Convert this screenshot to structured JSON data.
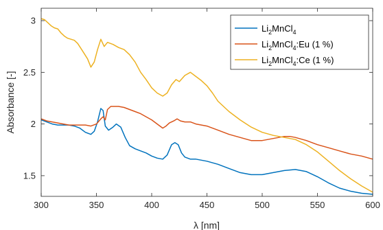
{
  "chart_data": {
    "type": "line",
    "xlabel": "λ [nm]",
    "ylabel": "Absorbance [-]",
    "xlim": [
      300,
      600
    ],
    "ylim": [
      1.3,
      3.12
    ],
    "xticks": [
      300,
      350,
      400,
      450,
      500,
      550,
      600
    ],
    "yticks": [
      1.5,
      2,
      2.5,
      3
    ],
    "grid": false,
    "legend_position": "top-right",
    "series": [
      {
        "name": "Li2MnCl4",
        "legend_parts": [
          "Li",
          "2",
          "MnCl",
          "4",
          ""
        ],
        "color": "#0072BD",
        "x": [
          300,
          305,
          310,
          315,
          320,
          325,
          330,
          335,
          340,
          345,
          348,
          351,
          354,
          356,
          358,
          361,
          365,
          368,
          372,
          376,
          380,
          385,
          390,
          395,
          400,
          405,
          410,
          414,
          418,
          421,
          424,
          427,
          430,
          435,
          440,
          450,
          460,
          470,
          480,
          490,
          500,
          510,
          520,
          530,
          540,
          550,
          560,
          570,
          580,
          590,
          600
        ],
        "y": [
          2.04,
          2.02,
          2.0,
          1.99,
          1.99,
          1.99,
          1.98,
          1.96,
          1.92,
          1.9,
          1.93,
          2.02,
          2.15,
          2.13,
          1.98,
          1.94,
          1.97,
          2.0,
          1.97,
          1.87,
          1.79,
          1.76,
          1.74,
          1.72,
          1.69,
          1.67,
          1.66,
          1.7,
          1.8,
          1.82,
          1.8,
          1.72,
          1.68,
          1.66,
          1.66,
          1.64,
          1.61,
          1.57,
          1.53,
          1.51,
          1.51,
          1.53,
          1.55,
          1.56,
          1.54,
          1.49,
          1.43,
          1.38,
          1.35,
          1.33,
          1.32
        ]
      },
      {
        "name": "Li2MnCl4:Eu (1 %)",
        "legend_parts": [
          "Li",
          "2",
          "MnCl",
          "4",
          ":Eu (1 %)"
        ],
        "color": "#D95319",
        "x": [
          300,
          305,
          310,
          315,
          320,
          325,
          330,
          335,
          340,
          345,
          350,
          354,
          356,
          358,
          360,
          363,
          366,
          370,
          375,
          380,
          385,
          390,
          395,
          400,
          405,
          410,
          413,
          416,
          420,
          423,
          426,
          430,
          435,
          440,
          450,
          460,
          470,
          480,
          490,
          500,
          510,
          520,
          525,
          530,
          540,
          550,
          560,
          570,
          580,
          590,
          600
        ],
        "y": [
          2.05,
          2.03,
          2.02,
          2.01,
          2.0,
          1.99,
          1.99,
          1.99,
          1.99,
          1.98,
          2.0,
          2.05,
          2.07,
          2.04,
          2.14,
          2.17,
          2.17,
          2.17,
          2.16,
          2.14,
          2.12,
          2.1,
          2.07,
          2.04,
          2.0,
          1.96,
          1.98,
          2.01,
          2.03,
          2.05,
          2.03,
          2.02,
          2.02,
          2.0,
          1.98,
          1.94,
          1.9,
          1.87,
          1.84,
          1.84,
          1.86,
          1.88,
          1.88,
          1.87,
          1.84,
          1.8,
          1.77,
          1.74,
          1.71,
          1.69,
          1.66
        ]
      },
      {
        "name": "Li2MnCl4:Ce (1 %)",
        "legend_parts": [
          "Li",
          "2",
          "MnCl",
          "4",
          ":Ce (1 %)"
        ],
        "color": "#EDB120",
        "x": [
          300,
          303,
          306,
          309,
          312,
          315,
          318,
          321,
          324,
          327,
          330,
          333,
          336,
          339,
          342,
          345,
          348,
          351,
          354,
          357,
          360,
          365,
          370,
          375,
          380,
          385,
          390,
          395,
          400,
          405,
          410,
          414,
          418,
          422,
          425,
          430,
          435,
          440,
          445,
          450,
          455,
          460,
          470,
          480,
          490,
          500,
          510,
          520,
          530,
          540,
          550,
          560,
          570,
          580,
          590,
          600
        ],
        "y": [
          3.02,
          3.01,
          2.98,
          2.95,
          2.93,
          2.92,
          2.88,
          2.85,
          2.83,
          2.82,
          2.81,
          2.78,
          2.73,
          2.68,
          2.63,
          2.55,
          2.6,
          2.72,
          2.82,
          2.75,
          2.79,
          2.77,
          2.74,
          2.72,
          2.67,
          2.6,
          2.5,
          2.43,
          2.35,
          2.3,
          2.27,
          2.3,
          2.38,
          2.43,
          2.41,
          2.47,
          2.5,
          2.46,
          2.42,
          2.37,
          2.3,
          2.22,
          2.12,
          2.04,
          1.97,
          1.92,
          1.89,
          1.87,
          1.85,
          1.8,
          1.73,
          1.64,
          1.55,
          1.47,
          1.4,
          1.34
        ]
      }
    ]
  }
}
